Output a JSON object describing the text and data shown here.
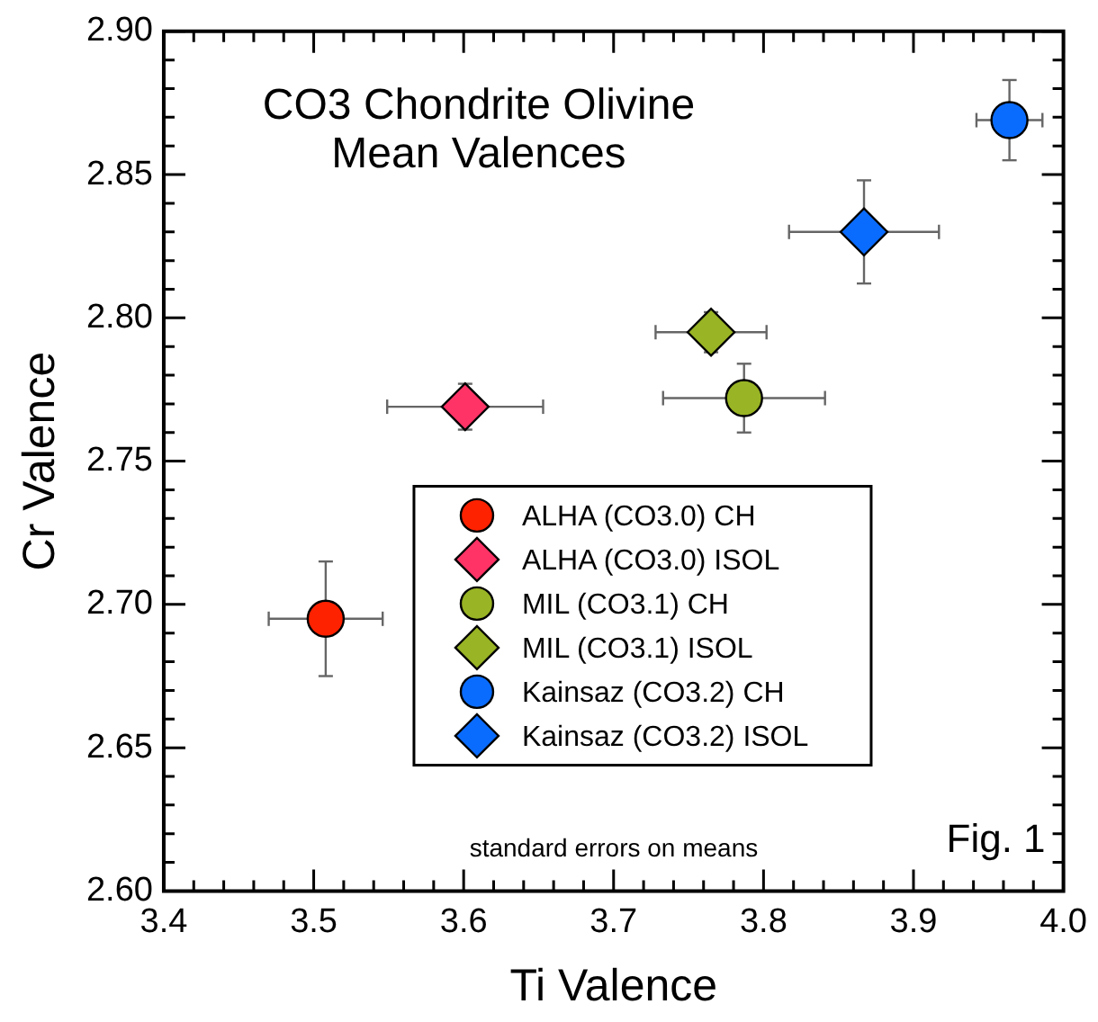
{
  "chart_data": {
    "type": "scatter",
    "title": "CO3 Chondrite Olivine\nMean Valences",
    "xlabel": "Ti Valence",
    "ylabel": "Cr Valence",
    "xlim": [
      3.4,
      4.0
    ],
    "ylim": [
      2.6,
      2.9
    ],
    "xticks": [
      3.4,
      {
        "value": 3.42,
        "label": null
      },
      {
        "value": 3.44,
        "label": null
      },
      {
        "value": 3.46,
        "label": null
      },
      {
        "value": 3.48,
        "label": null
      },
      3.5,
      {
        "value": 3.52,
        "label": null
      },
      {
        "value": 3.54,
        "label": null
      },
      {
        "value": 3.56,
        "label": null
      },
      {
        "value": 3.58,
        "label": null
      },
      3.6,
      {
        "value": 3.62,
        "label": null
      },
      {
        "value": 3.64,
        "label": null
      },
      {
        "value": 3.66,
        "label": null
      },
      {
        "value": 3.68,
        "label": null
      },
      3.7,
      {
        "value": 3.72,
        "label": null
      },
      {
        "value": 3.74,
        "label": null
      },
      {
        "value": 3.76,
        "label": null
      },
      {
        "value": 3.78,
        "label": null
      },
      3.8,
      {
        "value": 3.82,
        "label": null
      },
      {
        "value": 3.84,
        "label": null
      },
      {
        "value": 3.86,
        "label": null
      },
      {
        "value": 3.88,
        "label": null
      },
      3.9,
      {
        "value": 3.92,
        "label": null
      },
      {
        "value": 3.94,
        "label": null
      },
      {
        "value": 3.96,
        "label": null
      },
      {
        "value": 3.98,
        "label": null
      },
      {
        "value": 4.0,
        "label": "4.0"
      }
    ],
    "yticks": [
      {
        "value": 2.6,
        "label": "2.60"
      },
      {
        "value": 2.61,
        "label": null
      },
      {
        "value": 2.62,
        "label": null
      },
      {
        "value": 2.63,
        "label": null
      },
      {
        "value": 2.64,
        "label": null
      },
      2.65,
      {
        "value": 2.66,
        "label": null
      },
      {
        "value": 2.67,
        "label": null
      },
      {
        "value": 2.68,
        "label": null
      },
      {
        "value": 2.69,
        "label": null
      },
      {
        "value": 2.7,
        "label": "2.70"
      },
      {
        "value": 2.71,
        "label": null
      },
      {
        "value": 2.72,
        "label": null
      },
      {
        "value": 2.73,
        "label": null
      },
      {
        "value": 2.74,
        "label": null
      },
      2.75,
      {
        "value": 2.76,
        "label": null
      },
      {
        "value": 2.77,
        "label": null
      },
      {
        "value": 2.78,
        "label": null
      },
      {
        "value": 2.79,
        "label": null
      },
      {
        "value": 2.8,
        "label": "2.80"
      },
      {
        "value": 2.81,
        "label": null
      },
      {
        "value": 2.82,
        "label": null
      },
      {
        "value": 2.83,
        "label": null
      },
      {
        "value": 2.84,
        "label": null
      },
      2.85,
      {
        "value": 2.86,
        "label": null
      },
      {
        "value": 2.87,
        "label": null
      },
      {
        "value": 2.88,
        "label": null
      },
      {
        "value": 2.89,
        "label": null
      },
      {
        "value": 2.9,
        "label": "2.90"
      }
    ],
    "grid": false,
    "legend": "bottom",
    "series": [
      {
        "name": "ALHA (CO3.0) CH",
        "color": "#ff2200",
        "marker": "circle",
        "x": [
          3.508
        ],
        "values": [
          2.695
        ],
        "xerrors": [
          0.038
        ],
        "errors": [
          0.02
        ]
      },
      {
        "name": "ALHA (CO3.0) ISOL",
        "color": "#ff3366",
        "marker": "diamond",
        "x": [
          3.601
        ],
        "values": [
          2.769
        ],
        "xerrors": [
          0.052
        ],
        "errors": [
          0.008
        ]
      },
      {
        "name": "MIL (CO3.1) CH",
        "color": "#99b424",
        "marker": "circle",
        "x": [
          3.787
        ],
        "values": [
          2.772
        ],
        "xerrors": [
          0.054
        ],
        "errors": [
          0.012
        ]
      },
      {
        "name": "MIL (CO3.1) ISOL",
        "color": "#99b424",
        "marker": "diamond",
        "x": [
          3.765
        ],
        "values": [
          2.795
        ],
        "xerrors": [
          0.037
        ],
        "errors": [
          0.007
        ]
      },
      {
        "name": "Kainsaz (CO3.2) CH",
        "color": "#0a6cff",
        "marker": "circle",
        "x": [
          3.964
        ],
        "values": [
          2.869
        ],
        "xerrors": [
          0.022
        ],
        "errors": [
          0.014
        ]
      },
      {
        "name": "Kainsaz (CO3.2) ISOL",
        "color": "#0a6cff",
        "marker": "diamond",
        "x": [
          3.867
        ],
        "values": [
          2.83
        ],
        "xerrors": [
          0.05
        ],
        "errors": [
          0.018
        ]
      }
    ],
    "annotations": [
      "standard errors on means",
      "Fig. 1"
    ]
  }
}
